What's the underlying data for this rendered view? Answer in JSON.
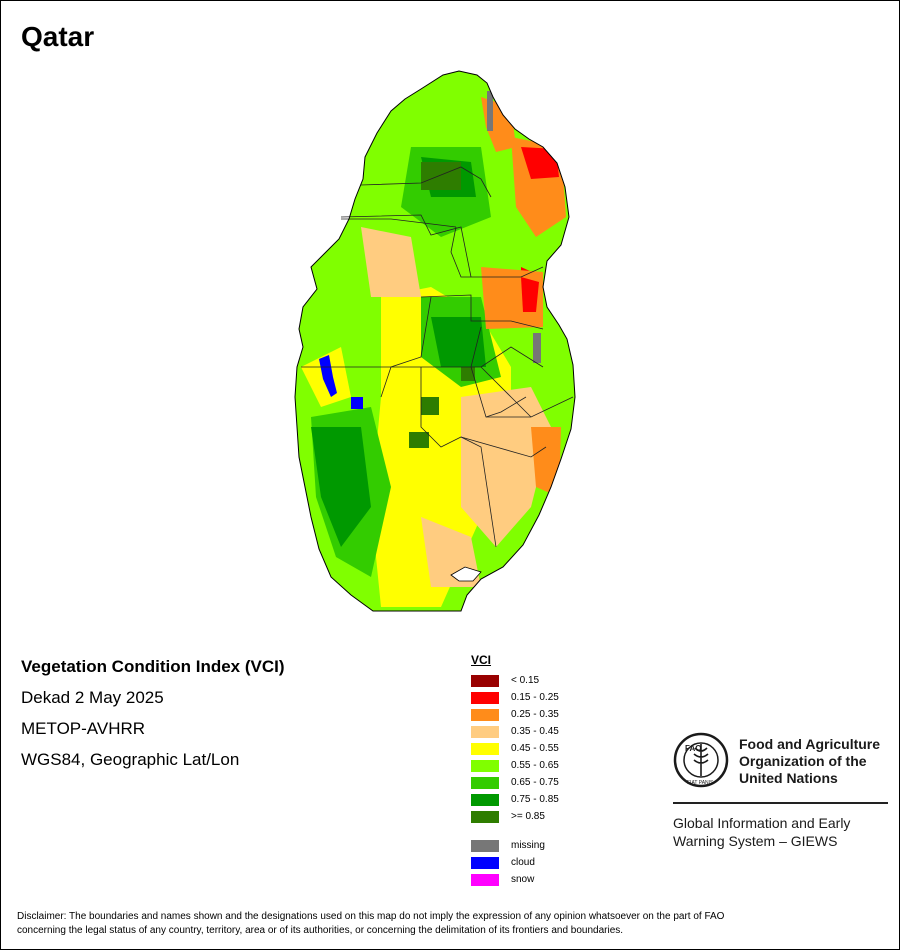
{
  "title": "Qatar",
  "info": {
    "index_name": "Vegetation Condition Index (VCI)",
    "period": "Dekad 2 May 2025",
    "sensor": "METOP-AVHRR",
    "projection": "WGS84, Geographic Lat/Lon"
  },
  "legend": {
    "title": "VCI",
    "classes": [
      {
        "label": "< 0.15",
        "color": "#990000"
      },
      {
        "label": "0.15 - 0.25",
        "color": "#ff0000"
      },
      {
        "label": "0.25 - 0.35",
        "color": "#ff8c1a"
      },
      {
        "label": "0.35 - 0.45",
        "color": "#ffcc80"
      },
      {
        "label": "0.45 - 0.55",
        "color": "#ffff00"
      },
      {
        "label": "0.55 - 0.65",
        "color": "#80ff00"
      },
      {
        "label": "0.65 - 0.75",
        "color": "#33cc00"
      },
      {
        "label": "0.75 - 0.85",
        "color": "#009900"
      },
      {
        "label": ">= 0.85",
        "color": "#2e7d00"
      }
    ],
    "extra": [
      {
        "label": "missing",
        "color": "#777777"
      },
      {
        "label": "cloud",
        "color": "#0000ff"
      },
      {
        "label": "snow",
        "color": "#ff00ff"
      }
    ]
  },
  "org": {
    "name_line1": "Food and Agriculture",
    "name_line2": "Organization of the",
    "name_line3": "United Nations",
    "giews_line1": "Global Information and Early",
    "giews_line2": "Warning System – GIEWS",
    "emblem_text": "FAO",
    "emblem_motto": "FIAT PANIS"
  },
  "disclaimer_line1": "Disclaimer: The boundaries and names shown and the designations used on this map do not imply the expression of any opinion whatsoever on the part of FAO",
  "disclaimer_line2": "concerning the legal status of any country, territory, area or of its authorities, or concerning the delimitation of its frontiers and boundaries."
}
